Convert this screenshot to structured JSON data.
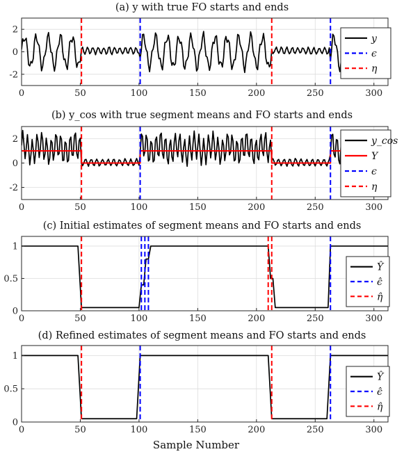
{
  "xlabel": "Sample Number",
  "colors": {
    "signal": "#000000",
    "mean": "#ff0000",
    "epsilon": "#0000ff",
    "eta": "#ff0000"
  },
  "chart_data": [
    {
      "type": "line",
      "title": "(a) y with true FO starts and ends",
      "xlim": [
        0,
        312
      ],
      "ylim": [
        -3,
        3
      ],
      "xticks": [
        0,
        50,
        100,
        150,
        200,
        250,
        300
      ],
      "yticks": [
        -2,
        0,
        2
      ],
      "grid": true,
      "legend_position": "right",
      "legend": [
        "y",
        "ϵ",
        "η"
      ],
      "series": [
        {
          "name": "y",
          "kind": "signal",
          "color": "#000000",
          "x_end": 288,
          "segments": [
            [
              0,
              51,
              1
            ],
            [
              51,
              101,
              0
            ],
            [
              101,
              213,
              1
            ],
            [
              213,
              263,
              0
            ],
            [
              263,
              288,
              1
            ]
          ]
        }
      ],
      "vlines": [
        {
          "x": 51,
          "color": "#ff0000",
          "label": "η"
        },
        {
          "x": 101,
          "color": "#0000ff",
          "label": "ϵ"
        },
        {
          "x": 213,
          "color": "#ff0000",
          "label": "η"
        },
        {
          "x": 263,
          "color": "#0000ff",
          "label": "ϵ"
        }
      ]
    },
    {
      "type": "line",
      "title": "(b) y_cos with true segment means and FO starts and ends",
      "xlim": [
        0,
        312
      ],
      "ylim": [
        -3,
        3
      ],
      "xticks": [
        0,
        50,
        100,
        150,
        200,
        250,
        300
      ],
      "yticks": [
        -2,
        0,
        2
      ],
      "grid": true,
      "legend_position": "right",
      "legend": [
        "y_cos",
        "Y",
        "ϵ",
        "η"
      ],
      "series": [
        {
          "name": "y_cos",
          "kind": "signal-cos",
          "color": "#000000",
          "x_end": 288,
          "segments": [
            [
              0,
              51,
              1
            ],
            [
              51,
              101,
              0
            ],
            [
              101,
              213,
              1
            ],
            [
              213,
              263,
              0
            ],
            [
              263,
              288,
              1
            ]
          ]
        },
        {
          "name": "Y",
          "kind": "step",
          "color": "#ff0000",
          "points": [
            [
              0,
              1
            ],
            [
              51,
              1
            ],
            [
              51,
              0
            ],
            [
              101,
              0
            ],
            [
              101,
              1
            ],
            [
              213,
              1
            ],
            [
              213,
              0
            ],
            [
              263,
              0
            ],
            [
              263,
              1
            ],
            [
              312,
              1
            ]
          ]
        }
      ],
      "vlines": [
        {
          "x": 51,
          "color": "#ff0000",
          "label": "η"
        },
        {
          "x": 101,
          "color": "#0000ff",
          "label": "ϵ"
        },
        {
          "x": 213,
          "color": "#ff0000",
          "label": "η"
        },
        {
          "x": 263,
          "color": "#0000ff",
          "label": "ϵ"
        }
      ]
    },
    {
      "type": "line",
      "title": "(c) Initial estimates of segment means and FO starts and ends",
      "xlim": [
        0,
        312
      ],
      "ylim": [
        0,
        1.15
      ],
      "xticks": [
        0,
        50,
        100,
        150,
        200,
        250,
        300
      ],
      "yticks": [
        0,
        0.5,
        1
      ],
      "grid": true,
      "legend_position": "right",
      "legend": [
        "Ŷ",
        "ϵ̂",
        "η̂"
      ],
      "series": [
        {
          "name": "Ŷ",
          "kind": "step",
          "color": "#000000",
          "points": [
            [
              0,
              1
            ],
            [
              48,
              1
            ],
            [
              51,
              0.05
            ],
            [
              100,
              0.05
            ],
            [
              102,
              0.4
            ],
            [
              104,
              0.4
            ],
            [
              106,
              0.8
            ],
            [
              108,
              0.8
            ],
            [
              110,
              1
            ],
            [
              210,
              1
            ],
            [
              212,
              0.5
            ],
            [
              214,
              0.5
            ],
            [
              216,
              0.05
            ],
            [
              261,
              0.05
            ],
            [
              263,
              1
            ],
            [
              312,
              1
            ]
          ]
        }
      ],
      "vlines": [
        {
          "x": 51,
          "color": "#ff0000",
          "label": "η̂"
        },
        {
          "x": 102,
          "color": "#0000ff",
          "label": "ϵ̂"
        },
        {
          "x": 105,
          "color": "#0000ff",
          "label": "ϵ̂"
        },
        {
          "x": 108,
          "color": "#0000ff",
          "label": "ϵ̂"
        },
        {
          "x": 210,
          "color": "#ff0000",
          "label": "η̂"
        },
        {
          "x": 213,
          "color": "#ff0000",
          "label": "η̂"
        },
        {
          "x": 263,
          "color": "#0000ff",
          "label": "ϵ̂"
        }
      ]
    },
    {
      "type": "line",
      "title": "(d) Refined estimates of segment means and FO starts and ends",
      "xlim": [
        0,
        312
      ],
      "ylim": [
        0,
        1.15
      ],
      "xticks": [
        0,
        50,
        100,
        150,
        200,
        250,
        300
      ],
      "yticks": [
        0,
        0.5,
        1
      ],
      "grid": true,
      "legend_position": "right",
      "legend": [
        "Ŷ",
        "ϵ̂",
        "η̂"
      ],
      "series": [
        {
          "name": "Ŷ",
          "kind": "step",
          "color": "#000000",
          "points": [
            [
              0,
              1
            ],
            [
              48,
              1
            ],
            [
              51,
              0.05
            ],
            [
              98,
              0.05
            ],
            [
              101,
              1
            ],
            [
              210,
              1
            ],
            [
              213,
              0.05
            ],
            [
              260,
              0.05
            ],
            [
              263,
              1
            ],
            [
              312,
              1
            ]
          ]
        }
      ],
      "vlines": [
        {
          "x": 51,
          "color": "#ff0000",
          "label": "η̂"
        },
        {
          "x": 101,
          "color": "#0000ff",
          "label": "ϵ̂"
        },
        {
          "x": 213,
          "color": "#ff0000",
          "label": "η̂"
        },
        {
          "x": 263,
          "color": "#0000ff",
          "label": "ϵ̂"
        }
      ]
    }
  ]
}
